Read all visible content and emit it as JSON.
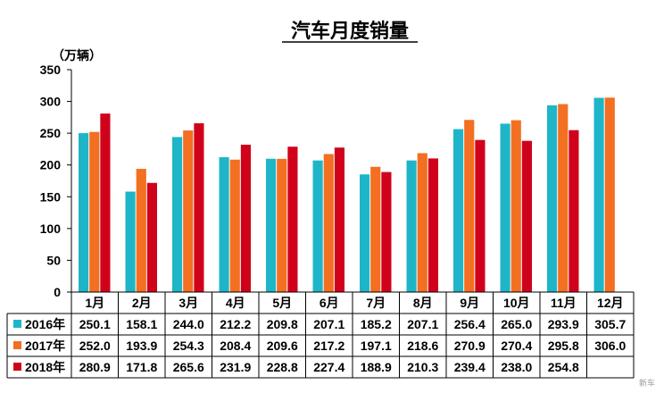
{
  "chart_data": {
    "type": "bar",
    "title": "汽车月度销量",
    "ylabel": "（万辆）",
    "xlabel": "",
    "ylim": [
      0,
      350
    ],
    "yticks": [
      0,
      50,
      100,
      150,
      200,
      250,
      300,
      350
    ],
    "categories": [
      "1月",
      "2月",
      "3月",
      "4月",
      "5月",
      "6月",
      "7月",
      "8月",
      "9月",
      "10月",
      "11月",
      "12月"
    ],
    "series": [
      {
        "name": "2016年",
        "color": "#1FB5C8",
        "values": [
          250.1,
          158.1,
          244.0,
          212.2,
          209.8,
          207.1,
          185.2,
          207.1,
          256.4,
          265.0,
          293.9,
          305.7
        ],
        "labels": [
          "250.1",
          "158.1",
          "244.0",
          "212.2",
          "209.8",
          "207.1",
          "185.2",
          "207.1",
          "256.4",
          "265.0",
          "293.9",
          "305.7"
        ]
      },
      {
        "name": "2017年",
        "color": "#F36F21",
        "values": [
          252.0,
          193.9,
          254.3,
          208.4,
          209.6,
          217.2,
          197.1,
          218.6,
          270.9,
          270.4,
          295.8,
          306.0
        ],
        "labels": [
          "252.0",
          "193.9",
          "254.3",
          "208.4",
          "209.6",
          "217.2",
          "197.1",
          "218.6",
          "270.9",
          "270.4",
          "295.8",
          "306.0"
        ]
      },
      {
        "name": "2018年",
        "color": "#D0021B",
        "values": [
          280.9,
          171.8,
          265.6,
          231.9,
          228.8,
          227.4,
          188.9,
          210.3,
          239.4,
          238.0,
          254.8,
          null
        ],
        "labels": [
          "280.9",
          "171.8",
          "265.6",
          "231.9",
          "228.8",
          "227.4",
          "188.9",
          "210.3",
          "239.4",
          "238.0",
          "254.8",
          ""
        ]
      }
    ],
    "legend_placement": "data-table-left",
    "grid": false
  },
  "watermark": "新车"
}
